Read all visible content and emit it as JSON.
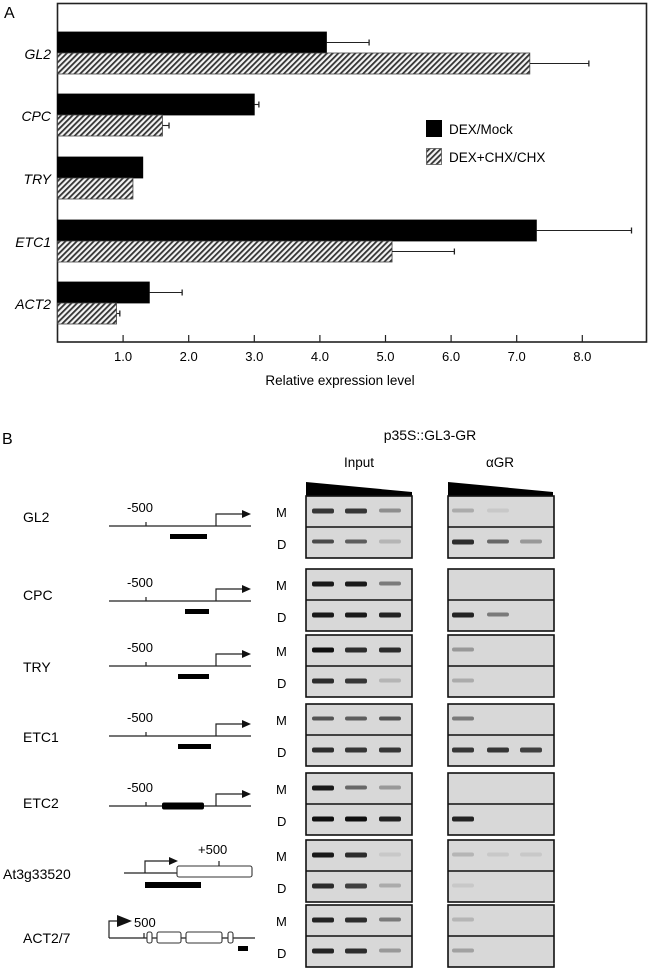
{
  "panel_a": {
    "panel_label": "A",
    "legend": [
      {
        "label": "DEX/Mock",
        "fill": "solid"
      },
      {
        "label": "DEX+CHX/CHX",
        "fill": "hatched"
      }
    ]
  },
  "panel_b": {
    "panel_label": "B",
    "construct": "p35S::GL3-GR",
    "columns": [
      "Input",
      "αGR"
    ],
    "row_labels": [
      "M",
      "D"
    ],
    "genes": [
      {
        "name": "GL2",
        "diagram": "promoter",
        "marker": "-500",
        "amplicon": "below",
        "input": {
          "M": [
            0.8,
            0.8,
            0.35
          ],
          "D": [
            0.7,
            0.6,
            0.15
          ]
        },
        "agr": {
          "M": [
            0.2,
            0.05,
            0.0
          ],
          "D": [
            0.85,
            0.55,
            0.3
          ]
        }
      },
      {
        "name": "CPC",
        "diagram": "promoter",
        "marker": "-500",
        "amplicon": "below",
        "input": {
          "M": [
            0.95,
            0.95,
            0.45
          ],
          "D": [
            0.95,
            0.95,
            0.9
          ]
        },
        "agr": {
          "M": [
            0.0,
            0.0,
            0.0
          ],
          "D": [
            0.9,
            0.45,
            0.0
          ]
        }
      },
      {
        "name": "TRY",
        "diagram": "promoter",
        "marker": "-500",
        "amplicon": "below",
        "input": {
          "M": [
            1.0,
            0.85,
            0.85
          ],
          "D": [
            0.85,
            0.8,
            0.15
          ]
        },
        "agr": {
          "M": [
            0.3,
            0.0,
            0.0
          ],
          "D": [
            0.2,
            0.0,
            0.0
          ]
        }
      },
      {
        "name": "ETC1",
        "diagram": "promoter",
        "marker": "-500",
        "amplicon": "below",
        "input": {
          "M": [
            0.65,
            0.6,
            0.65
          ],
          "D": [
            0.85,
            0.8,
            0.8
          ]
        },
        "agr": {
          "M": [
            0.45,
            0.0,
            0.0
          ],
          "D": [
            0.8,
            0.8,
            0.75
          ]
        }
      },
      {
        "name": "ETC2",
        "diagram": "promoter",
        "marker": "-500",
        "amplicon": "inline",
        "input": {
          "M": [
            0.95,
            0.55,
            0.3
          ],
          "D": [
            1.0,
            1.0,
            0.9
          ]
        },
        "agr": {
          "M": [
            0.0,
            0.0,
            0.0
          ],
          "D": [
            0.9,
            0.0,
            0.0
          ]
        }
      },
      {
        "name": "At3g33520",
        "diagram": "coding",
        "marker": "+500",
        "amplicon": "below",
        "input": {
          "M": [
            0.95,
            0.85,
            0.05
          ],
          "D": [
            0.85,
            0.75,
            0.2
          ]
        },
        "agr": {
          "M": [
            0.15,
            0.05,
            0.05
          ],
          "D": [
            0.05,
            0.0,
            0.0
          ]
        }
      },
      {
        "name": "ACT2/7",
        "diagram": "exons",
        "marker": "500",
        "amplicon": "3prime",
        "input": {
          "M": [
            0.9,
            0.85,
            0.45
          ],
          "D": [
            0.9,
            0.85,
            0.3
          ]
        },
        "agr": {
          "M": [
            0.15,
            0.0,
            0.0
          ],
          "D": [
            0.25,
            0.0,
            0.0
          ]
        }
      }
    ]
  },
  "chart_data": {
    "type": "bar",
    "orientation": "horizontal",
    "title": "",
    "xlabel": "Relative expression level",
    "ylabel": "",
    "categories": [
      "GL2",
      "CPC",
      "TRY",
      "ETC1",
      "ACT2"
    ],
    "series": [
      {
        "name": "DEX/Mock",
        "fill": "solid",
        "color": "#000000",
        "values": [
          4.1,
          3.0,
          1.3,
          7.3,
          1.4
        ],
        "error": [
          0.65,
          0.07,
          0.0,
          1.45,
          0.5
        ]
      },
      {
        "name": "DEX+CHX/CHX",
        "fill": "hatched",
        "color": "#555555",
        "values": [
          7.2,
          1.6,
          1.15,
          5.1,
          0.9
        ],
        "error": [
          0.9,
          0.1,
          0.0,
          0.95,
          0.05
        ]
      }
    ],
    "xticks": [
      "1.0",
      "2.0",
      "3.0",
      "4.0",
      "5.0",
      "6.0",
      "7.0",
      "8.0"
    ],
    "xlim": [
      0,
      8.9
    ],
    "grid": false,
    "legend_position": "right-middle"
  }
}
